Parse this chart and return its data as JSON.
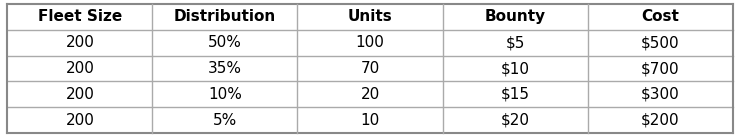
{
  "columns": [
    "Fleet Size",
    "Distribution",
    "Units",
    "Bounty",
    "Cost"
  ],
  "rows": [
    [
      "200",
      "50%",
      "100",
      "$5",
      "$500"
    ],
    [
      "200",
      "35%",
      "70",
      "$10",
      "$700"
    ],
    [
      "200",
      "10%",
      "20",
      "$15",
      "$300"
    ],
    [
      "200",
      "5%",
      "10",
      "$20",
      "$200"
    ]
  ],
  "header_bg": "#ffffff",
  "row_bg": "#ffffff",
  "border_color": "#aaaaaa",
  "header_font_weight": "bold",
  "cell_font_size": 11,
  "header_font_size": 11,
  "outer_border_color": "#888888",
  "figsize": [
    7.4,
    1.37
  ],
  "dpi": 100
}
